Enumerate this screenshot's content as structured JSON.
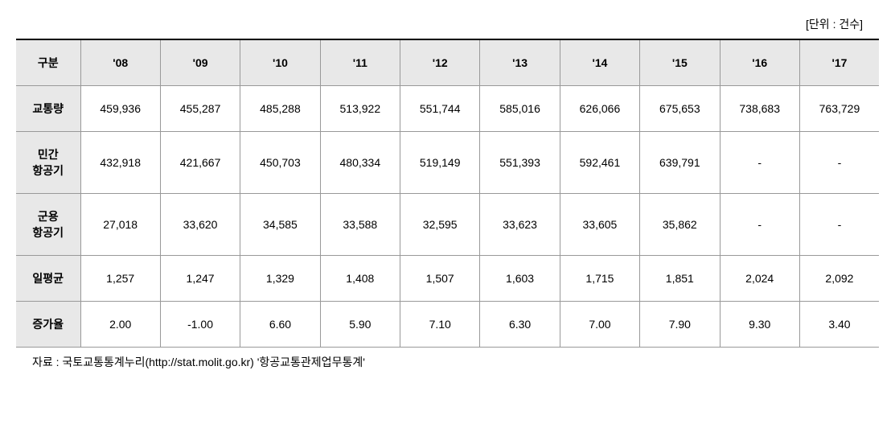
{
  "unit_label": "[단위 : 건수]",
  "table": {
    "columns": [
      "구분",
      "'08",
      "'09",
      "'10",
      "'11",
      "'12",
      "'13",
      "'14",
      "'15",
      "'16",
      "'17"
    ],
    "rows": [
      {
        "header": "교통량",
        "cells": [
          "459,936",
          "455,287",
          "485,288",
          "513,922",
          "551,744",
          "585,016",
          "626,066",
          "675,653",
          "738,683",
          "763,729"
        ]
      },
      {
        "header": "민간\n항공기",
        "cells": [
          "432,918",
          "421,667",
          "450,703",
          "480,334",
          "519,149",
          "551,393",
          "592,461",
          "639,791",
          "-",
          "-"
        ]
      },
      {
        "header": "군용\n항공기",
        "cells": [
          "27,018",
          "33,620",
          "34,585",
          "33,588",
          "32,595",
          "33,623",
          "33,605",
          "35,862",
          "-",
          "-"
        ]
      },
      {
        "header": "일평균",
        "cells": [
          "1,257",
          "1,247",
          "1,329",
          "1,408",
          "1,507",
          "1,603",
          "1,715",
          "1,851",
          "2,024",
          "2,092"
        ]
      },
      {
        "header": "증가율",
        "cells": [
          "2.00",
          "-1.00",
          "6.60",
          "5.90",
          "7.10",
          "6.30",
          "7.00",
          "7.90",
          "9.30",
          "3.40"
        ]
      }
    ]
  },
  "source": "자료 : 국토교통통계누리(http://stat.molit.go.kr) '항공교통관제업무통계'",
  "styling": {
    "header_bg": "#e8e8e8",
    "border_color": "#999999",
    "top_border": "#000000",
    "text_color": "#000000",
    "font_size": 14,
    "cell_padding": 18
  }
}
